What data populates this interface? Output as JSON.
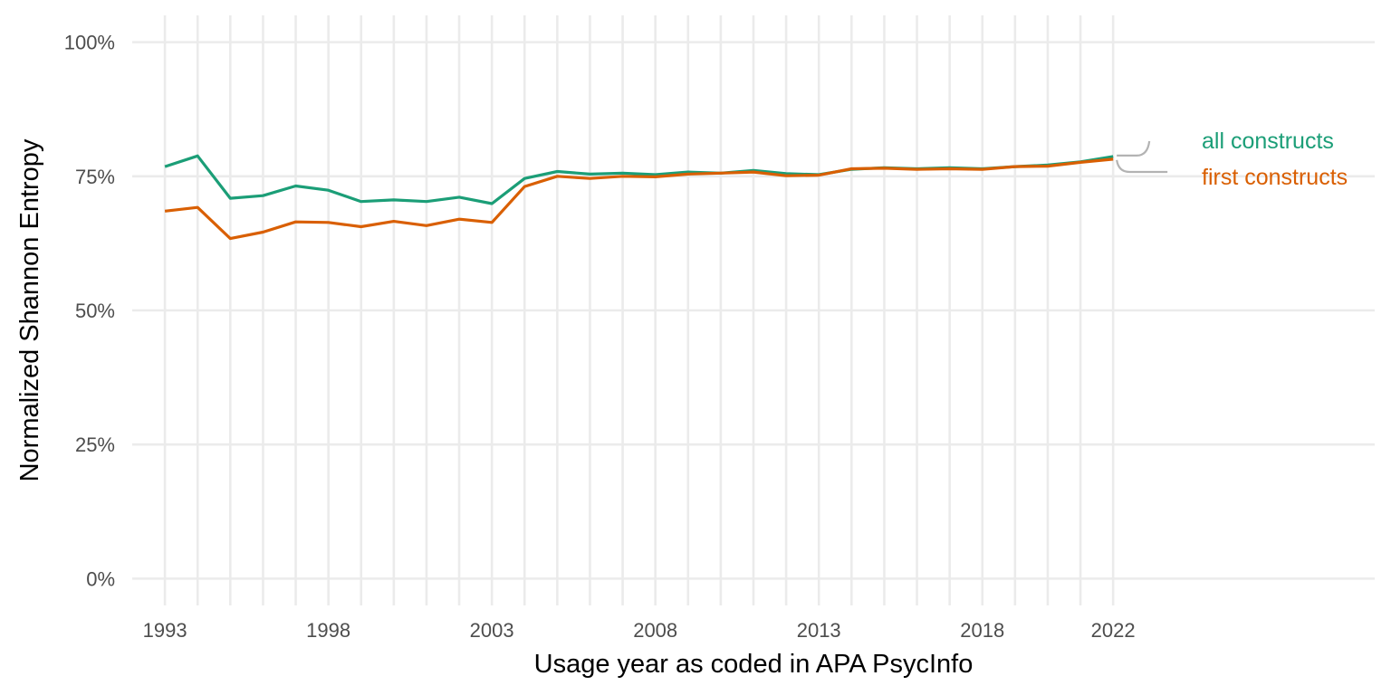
{
  "chart_data": {
    "type": "line",
    "xlabel": "Usage year as coded in APA PsycInfo",
    "ylabel": "Normalized Shannon Entropy",
    "x": [
      1993,
      1994,
      1995,
      1996,
      1997,
      1998,
      1999,
      2000,
      2001,
      2002,
      2003,
      2004,
      2005,
      2006,
      2007,
      2008,
      2009,
      2010,
      2011,
      2012,
      2013,
      2014,
      2015,
      2016,
      2017,
      2018,
      2019,
      2020,
      2021,
      2022
    ],
    "x_ticks": [
      "1993",
      "1998",
      "2003",
      "2008",
      "2013",
      "2018",
      "2022"
    ],
    "xlim": [
      1992,
      2030
    ],
    "ylim": [
      -0.05,
      1.05
    ],
    "y_ticks": [
      {
        "value": 0,
        "label": "0%"
      },
      {
        "value": 0.25,
        "label": "25%"
      },
      {
        "value": 0.5,
        "label": "50%"
      },
      {
        "value": 0.75,
        "label": "75%"
      },
      {
        "value": 1.0,
        "label": "100%"
      }
    ],
    "grid": true,
    "legend": "direct labels at right end of lines",
    "series": [
      {
        "name": "all constructs",
        "color": "#1b9e77",
        "values": [
          0.768,
          0.788,
          0.709,
          0.714,
          0.732,
          0.724,
          0.703,
          0.706,
          0.703,
          0.711,
          0.699,
          0.746,
          0.759,
          0.754,
          0.756,
          0.753,
          0.758,
          0.756,
          0.761,
          0.755,
          0.753,
          0.763,
          0.766,
          0.764,
          0.766,
          0.764,
          0.768,
          0.771,
          0.777,
          0.787
        ]
      },
      {
        "name": "first constructs",
        "color": "#d95f02",
        "values": [
          0.685,
          0.692,
          0.634,
          0.646,
          0.665,
          0.664,
          0.656,
          0.666,
          0.658,
          0.67,
          0.664,
          0.731,
          0.75,
          0.746,
          0.75,
          0.749,
          0.754,
          0.756,
          0.758,
          0.751,
          0.752,
          0.764,
          0.765,
          0.763,
          0.764,
          0.763,
          0.768,
          0.769,
          0.776,
          0.782
        ]
      }
    ]
  },
  "colors": {
    "grid": "#ebebeb",
    "tick_text": "#4d4d4d",
    "connector": "#b3b3b3"
  }
}
